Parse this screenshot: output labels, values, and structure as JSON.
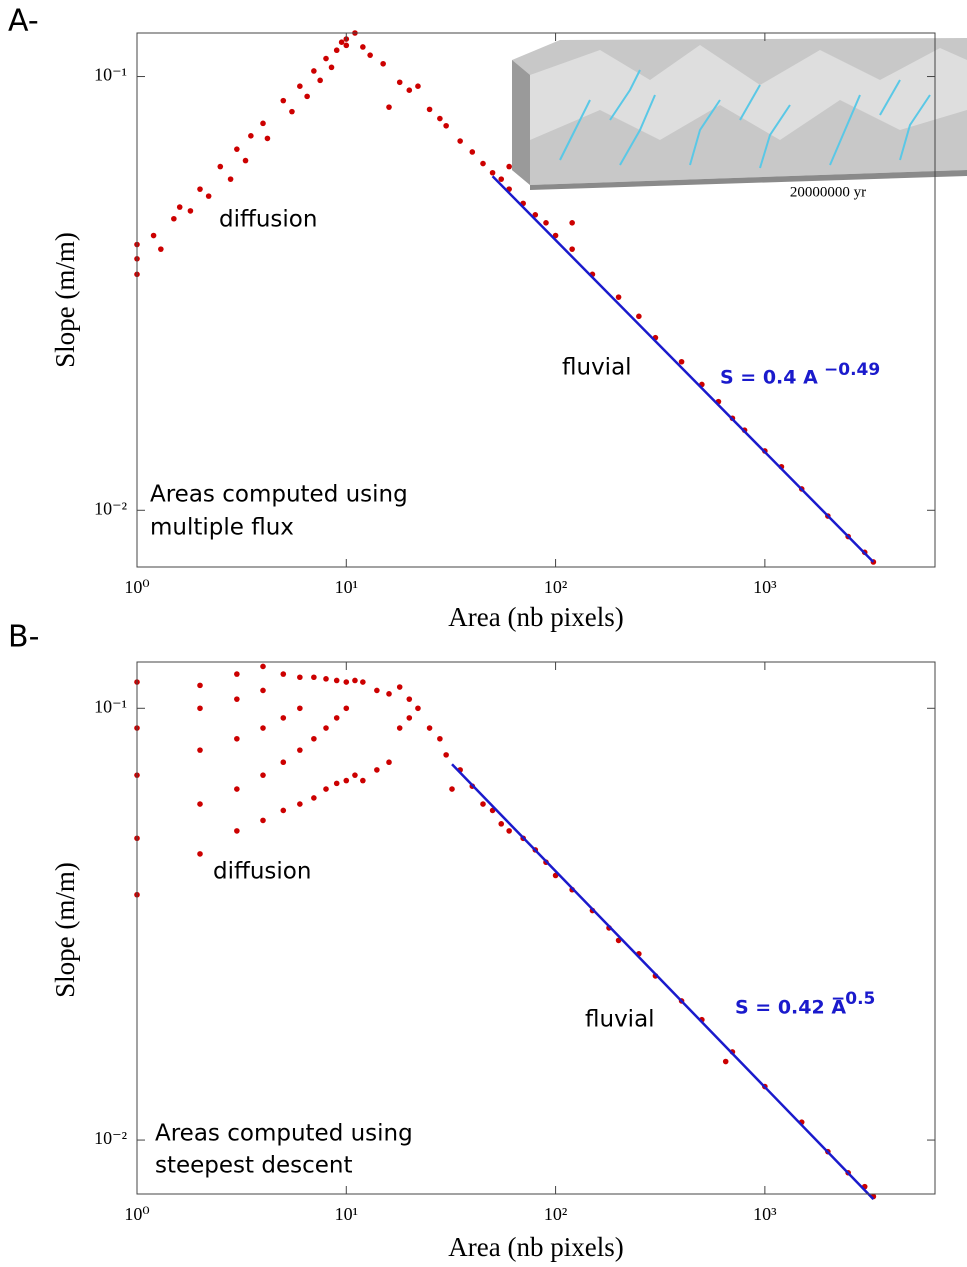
{
  "chart_data": [
    {
      "type": "scatter",
      "panel_label": "A-",
      "xlabel": "Area (nb pixels)",
      "ylabel": "Slope (m/m)",
      "log_x": true,
      "log_y": true,
      "xlim": [
        1,
        6500
      ],
      "ylim": [
        0.0074,
        0.126
      ],
      "xticks": [
        {
          "value": 1,
          "label": "10⁰"
        },
        {
          "value": 10,
          "label": "10¹"
        },
        {
          "value": 100,
          "label": "10²"
        },
        {
          "value": 1000,
          "label": "10³"
        }
      ],
      "yticks": [
        {
          "value": 0.01,
          "label": "10⁻²"
        },
        {
          "value": 0.1,
          "label": "10⁻¹"
        }
      ],
      "annotations": [
        "diffusion",
        "fluvial",
        "Areas computed using",
        "multiple flux"
      ],
      "equation": {
        "text": "S = 0.4 A",
        "exponent": "−0.49",
        "color": "#1a1acc"
      },
      "inset_label": "20000000 yr",
      "points": {
        "color": "#cc0000",
        "x": [
          1,
          1,
          1,
          1.2,
          1.3,
          1.5,
          1.6,
          1.8,
          2,
          2.2,
          2.5,
          2.8,
          3,
          3.3,
          3.5,
          4,
          4.2,
          5,
          5.5,
          6,
          6.5,
          7,
          7.5,
          8,
          8.5,
          9,
          9.5,
          10,
          10,
          11,
          12,
          13,
          15,
          16,
          18,
          20,
          22,
          25,
          28,
          30,
          35,
          40,
          45,
          50,
          55,
          60,
          60,
          70,
          80,
          90,
          100,
          120,
          120,
          150,
          200,
          250,
          300,
          400,
          500,
          600,
          700,
          800,
          1000,
          1200,
          1500,
          2000,
          2500,
          3000,
          3300
        ],
        "values": [
          0.038,
          0.035,
          0.041,
          0.043,
          0.04,
          0.047,
          0.05,
          0.049,
          0.055,
          0.053,
          0.062,
          0.058,
          0.068,
          0.064,
          0.073,
          0.078,
          0.072,
          0.088,
          0.083,
          0.095,
          0.09,
          0.103,
          0.098,
          0.11,
          0.105,
          0.115,
          0.12,
          0.122,
          0.118,
          0.126,
          0.117,
          0.112,
          0.107,
          0.085,
          0.097,
          0.093,
          0.095,
          0.084,
          0.08,
          0.077,
          0.071,
          0.067,
          0.063,
          0.06,
          0.058,
          0.055,
          0.062,
          0.051,
          0.048,
          0.046,
          0.043,
          0.04,
          0.046,
          0.035,
          0.031,
          0.028,
          0.025,
          0.022,
          0.0195,
          0.0178,
          0.0163,
          0.0153,
          0.0137,
          0.0126,
          0.0112,
          0.0097,
          0.0087,
          0.008,
          0.0076
        ]
      },
      "fit_line": {
        "color": "#1a1acc",
        "x": [
          50,
          3300
        ],
        "values": [
          0.0589,
          0.0076
        ]
      }
    },
    {
      "type": "scatter",
      "panel_label": "B-",
      "xlabel": "Area (nb pixels)",
      "ylabel": "Slope (m/m)",
      "log_x": true,
      "log_y": true,
      "xlim": [
        1,
        6500
      ],
      "ylim": [
        0.0075,
        0.128
      ],
      "xticks": [
        {
          "value": 1,
          "label": "10⁰"
        },
        {
          "value": 10,
          "label": "10¹"
        },
        {
          "value": 100,
          "label": "10²"
        },
        {
          "value": 1000,
          "label": "10³"
        }
      ],
      "yticks": [
        {
          "value": 0.01,
          "label": "10⁻²"
        },
        {
          "value": 0.1,
          "label": "10⁻¹"
        }
      ],
      "annotations": [
        "diffusion",
        "fluvial",
        "Areas computed using",
        "steepest descent"
      ],
      "equation": {
        "text": "S = 0.42 A",
        "exponent": "−0.5",
        "color": "#1a1acc"
      },
      "points": {
        "color": "#cc0000",
        "x": [
          1,
          1,
          1,
          1,
          1,
          2,
          2,
          2,
          2,
          2,
          3,
          3,
          3,
          3,
          3,
          4,
          4,
          4,
          4,
          4,
          5,
          5,
          5,
          5,
          6,
          6,
          6,
          6,
          7,
          7,
          7,
          8,
          8,
          8,
          9,
          9,
          9,
          10,
          10,
          10,
          11,
          11,
          12,
          12,
          14,
          14,
          16,
          16,
          18,
          18,
          20,
          20,
          22,
          25,
          28,
          30,
          32,
          35,
          40,
          45,
          50,
          55,
          60,
          70,
          80,
          90,
          100,
          120,
          150,
          180,
          200,
          250,
          300,
          400,
          500,
          650,
          700,
          1000,
          1500,
          2000,
          2500,
          3000,
          3300
        ],
        "values": [
          0.037,
          0.05,
          0.07,
          0.09,
          0.115,
          0.046,
          0.06,
          0.08,
          0.1,
          0.113,
          0.052,
          0.065,
          0.085,
          0.105,
          0.12,
          0.055,
          0.07,
          0.09,
          0.11,
          0.125,
          0.058,
          0.075,
          0.095,
          0.12,
          0.06,
          0.08,
          0.1,
          0.118,
          0.062,
          0.085,
          0.118,
          0.065,
          0.09,
          0.117,
          0.067,
          0.095,
          0.116,
          0.068,
          0.1,
          0.115,
          0.07,
          0.116,
          0.068,
          0.115,
          0.072,
          0.11,
          0.075,
          0.108,
          0.09,
          0.112,
          0.095,
          0.105,
          0.1,
          0.09,
          0.085,
          0.078,
          0.065,
          0.072,
          0.066,
          0.06,
          0.058,
          0.054,
          0.052,
          0.05,
          0.047,
          0.044,
          0.041,
          0.038,
          0.034,
          0.031,
          0.029,
          0.027,
          0.024,
          0.021,
          0.019,
          0.0152,
          0.016,
          0.0133,
          0.011,
          0.0094,
          0.0084,
          0.0078,
          0.0074
        ]
      },
      "fit_line": {
        "color": "#1a1acc",
        "x": [
          32,
          3300
        ],
        "values": [
          0.0742,
          0.0073
        ]
      }
    }
  ]
}
